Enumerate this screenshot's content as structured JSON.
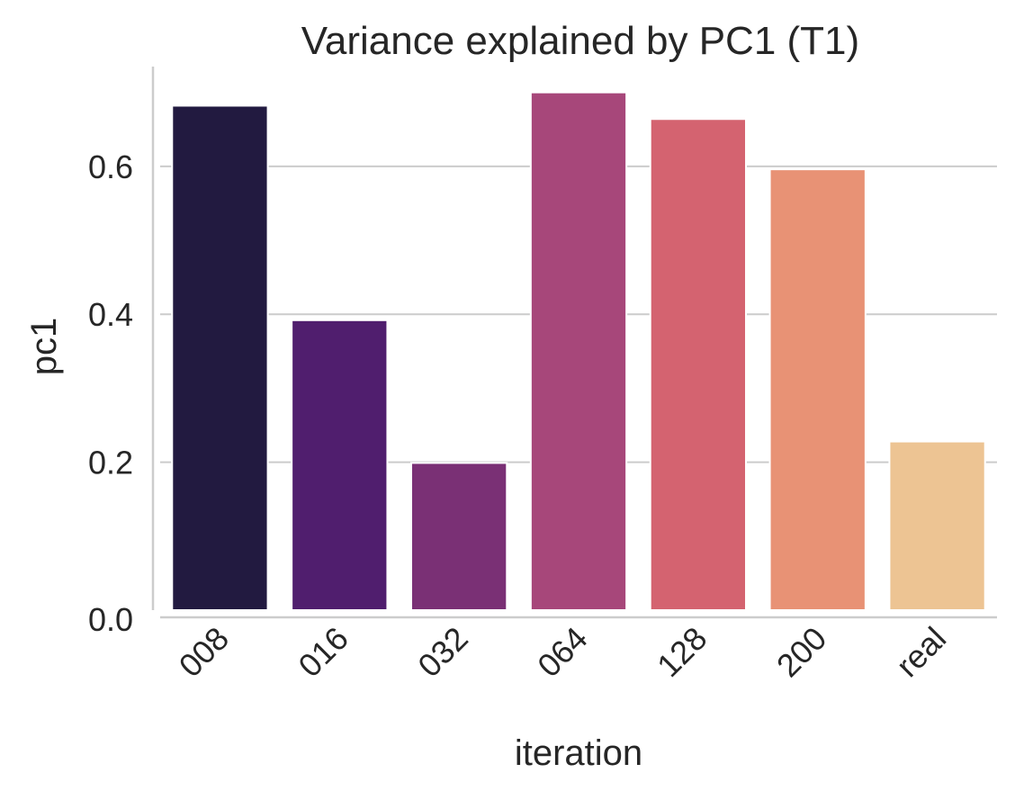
{
  "chart_data": {
    "type": "bar",
    "title": "Variance explained by PC1 (T1)",
    "xlabel": "iteration",
    "ylabel": "pc1",
    "categories": [
      "008",
      "016",
      "032",
      "064",
      "128",
      "200",
      "real"
    ],
    "values": [
      0.682,
      0.392,
      0.199,
      0.7,
      0.664,
      0.596,
      0.228
    ],
    "ylim": [
      0,
      0.73
    ],
    "yticks": [
      0.0,
      0.2,
      0.4,
      0.6
    ],
    "ytick_labels": [
      "0.0",
      "0.2",
      "0.4",
      "0.6"
    ],
    "grid": "horizontal",
    "colors": [
      "#221a40",
      "#501e6e",
      "#7a3075",
      "#a7477a",
      "#d46370",
      "#e89275",
      "#edc493"
    ],
    "gridline_color": "#cccccc",
    "axis_color": "#cccccc",
    "text_color": "#262626"
  }
}
